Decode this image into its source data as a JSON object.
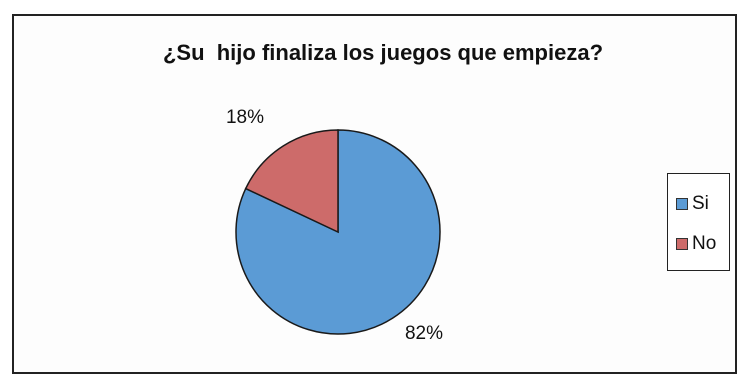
{
  "chart_data": {
    "type": "pie",
    "title": "¿Su  hijo finaliza los juegos que empieza?",
    "categories": [
      "Si",
      "No"
    ],
    "values": [
      82,
      18
    ],
    "data_labels": [
      "82%",
      "18%"
    ],
    "colors": [
      "#5b9bd5",
      "#cd6b6a"
    ],
    "legend": {
      "position": "right",
      "entries": [
        "Si",
        "No"
      ]
    }
  }
}
